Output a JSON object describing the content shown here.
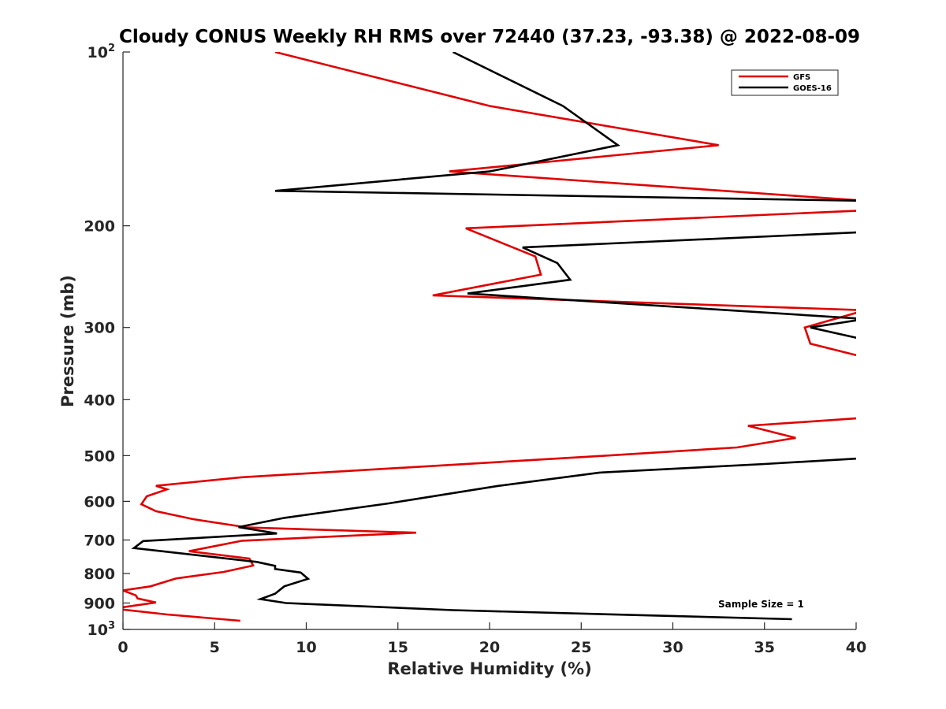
{
  "chart_data": {
    "type": "line",
    "title": "Cloudy CONUS Weekly RH RMS over 72440 (37.23, -93.38) @ 2022-08-09",
    "xlabel": "Relative Humidity (%)",
    "ylabel": "Pressure (mb)",
    "xlim": [
      0,
      40
    ],
    "ylim": [
      100,
      1000
    ],
    "yscale": "log",
    "y_inverted": true,
    "grid": false,
    "legend_position": "top-right",
    "x_ticks": [
      0,
      5,
      10,
      15,
      20,
      25,
      30,
      35,
      40
    ],
    "x_tick_labels": [
      "0",
      "5",
      "10",
      "15",
      "20",
      "25",
      "30",
      "35",
      "40"
    ],
    "y_ticks": [
      100,
      200,
      300,
      400,
      500,
      600,
      700,
      800,
      900,
      1000
    ],
    "y_tick_labels": [
      {
        "base": "10",
        "exp": "2"
      },
      {
        "base": "200",
        "exp": ""
      },
      {
        "base": "300",
        "exp": ""
      },
      {
        "base": "400",
        "exp": ""
      },
      {
        "base": "500",
        "exp": ""
      },
      {
        "base": "600",
        "exp": ""
      },
      {
        "base": "700",
        "exp": ""
      },
      {
        "base": "800",
        "exp": ""
      },
      {
        "base": "900",
        "exp": ""
      },
      {
        "base": "10",
        "exp": "3"
      }
    ],
    "annotation": "Sample Size = 1",
    "series": [
      {
        "name": "GFS",
        "color": "#e00000",
        "x": [
          8.3,
          20.0,
          32.5,
          17.8,
          40.5,
          40.5,
          18.7,
          22.5,
          22.8,
          16.9,
          40.5,
          37.2,
          37.5,
          40.5,
          40.5,
          34.1,
          36.7,
          33.5,
          25.5,
          6.5,
          1.8,
          2.4,
          1.3,
          1.0,
          1.8,
          3.8,
          6.8,
          16.0,
          6.5,
          3.6,
          6.9,
          7.1,
          5.5,
          2.9,
          1.5,
          0.0,
          0.7,
          0.8,
          1.8,
          -0.5,
          2.4,
          6.4
        ],
        "y": [
          100,
          124,
          145,
          161,
          181,
          188,
          202,
          226,
          243,
          264,
          280,
          300,
          320,
          338,
          430,
          444,
          466,
          484,
          502,
          545,
          564,
          572,
          588,
          607,
          624,
          644,
          666,
          680,
          702,
          732,
          754,
          775,
          795,
          816,
          842,
          856,
          873,
          884,
          898,
          920,
          942,
          966
        ]
      },
      {
        "name": "GOES-16",
        "color": "#000000",
        "x": [
          18.0,
          24.0,
          27.0,
          20.0,
          8.3,
          40.5,
          40.5,
          21.8,
          23.7,
          24.4,
          18.8,
          40.5,
          37.5,
          40.5,
          40.5,
          40.5,
          35.0,
          26.0,
          20.5,
          14.5,
          8.8,
          6.3,
          8.4,
          1.1,
          0.6,
          7.3,
          8.3,
          8.3,
          9.7,
          10.1,
          8.8,
          8.3,
          7.5,
          8.9,
          18.0,
          36.5
        ],
        "y": [
          100,
          124,
          145,
          161,
          174,
          181,
          205,
          218,
          232,
          248,
          262,
          290,
          300,
          315,
          360,
          505,
          517,
          535,
          564,
          605,
          641,
          665,
          682,
          703,
          723,
          764,
          776,
          786,
          797,
          817,
          842,
          867,
          886,
          900,
          926,
          960
        ]
      }
    ]
  }
}
